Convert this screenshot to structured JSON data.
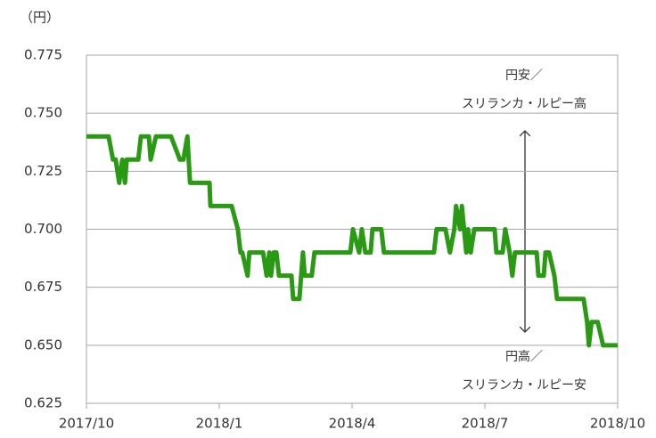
{
  "chart_data": {
    "type": "line",
    "unit_label": "（円）",
    "annotations": [
      "円安／",
      "スリランカ・ルピー高",
      "円高／",
      "スリランカ・ルピー安"
    ],
    "x": [
      0,
      0.5,
      0.6,
      0.66,
      0.74,
      0.81,
      0.87,
      0.91,
      1.17,
      1.23,
      1.41,
      1.45,
      1.57,
      1.91,
      2.11,
      2.19,
      2.28,
      2.34,
      2.78,
      2.8,
      3.28,
      3.42,
      3.48,
      3.52,
      3.64,
      3.68,
      3.99,
      4.07,
      4.13,
      4.17,
      4.23,
      4.29,
      4.35,
      4.63,
      4.67,
      4.81,
      4.85,
      4.89,
      4.93,
      5.09,
      5.15,
      5.96,
      6.02,
      6.16,
      6.22,
      6.3,
      6.42,
      6.46,
      6.66,
      6.72,
      7.85,
      7.91,
      8.11,
      8.21,
      8.31,
      8.35,
      8.44,
      8.48,
      8.58,
      8.62,
      8.68,
      8.76,
      9.22,
      9.26,
      9.4,
      9.46,
      9.56,
      9.62,
      9.68,
      10.17,
      10.21,
      10.33,
      10.37,
      10.45,
      10.57,
      10.63,
      11.23,
      11.31,
      11.35,
      11.41,
      11.55,
      11.67,
      12
    ],
    "series": [
      {
        "color": "#2a9a14",
        "values": [
          0.74,
          0.74,
          0.73,
          0.73,
          0.72,
          0.73,
          0.72,
          0.73,
          0.73,
          0.74,
          0.74,
          0.73,
          0.74,
          0.74,
          0.73,
          0.73,
          0.74,
          0.72,
          0.72,
          0.71,
          0.71,
          0.7,
          0.69,
          0.69,
          0.68,
          0.69,
          0.69,
          0.68,
          0.69,
          0.68,
          0.69,
          0.69,
          0.68,
          0.68,
          0.67,
          0.67,
          0.68,
          0.69,
          0.68,
          0.68,
          0.69,
          0.69,
          0.7,
          0.69,
          0.7,
          0.69,
          0.69,
          0.7,
          0.7,
          0.69,
          0.69,
          0.7,
          0.7,
          0.69,
          0.7,
          0.71,
          0.7,
          0.71,
          0.69,
          0.7,
          0.69,
          0.7,
          0.7,
          0.69,
          0.69,
          0.7,
          0.69,
          0.68,
          0.69,
          0.69,
          0.68,
          0.68,
          0.69,
          0.69,
          0.68,
          0.67,
          0.67,
          0.66,
          0.65,
          0.66,
          0.66,
          0.65,
          0.65
        ]
      }
    ],
    "xlim": [
      0,
      12
    ],
    "xticks": [
      {
        "value": 0,
        "label": "2017/10"
      },
      {
        "value": 3,
        "label": "2018/1"
      },
      {
        "value": 6,
        "label": "2018/4"
      },
      {
        "value": 9,
        "label": "2018/7"
      },
      {
        "value": 12,
        "label": "2018/10"
      }
    ],
    "ylim": [
      0.625,
      0.775
    ],
    "yticks": [
      0.625,
      {
        "value": 0.65,
        "label": "0.650"
      },
      0.675,
      {
        "value": 0.7,
        "label": "0.700"
      },
      0.725,
      {
        "value": 0.75,
        "label": "0.750"
      },
      0.775
    ],
    "grid": true
  }
}
